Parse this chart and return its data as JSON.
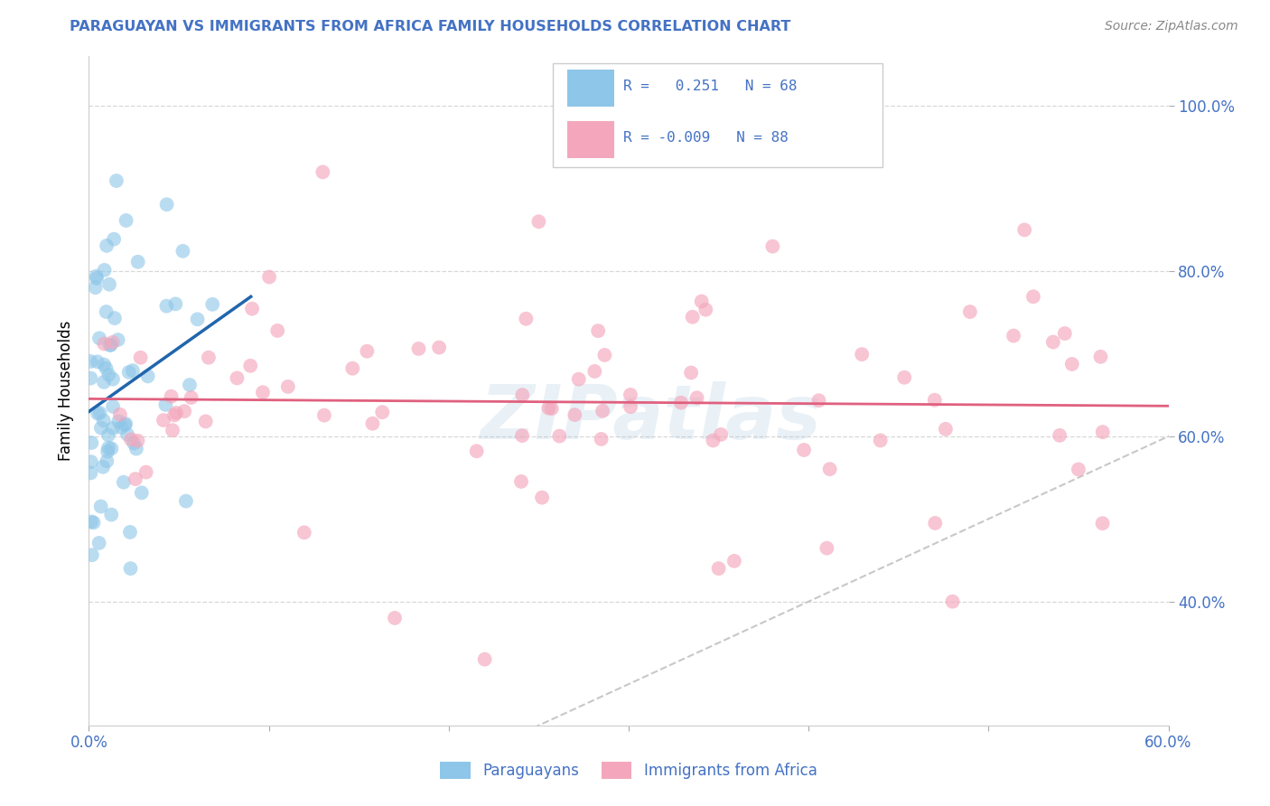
{
  "title": "PARAGUAYAN VS IMMIGRANTS FROM AFRICA FAMILY HOUSEHOLDS CORRELATION CHART",
  "source": "Source: ZipAtlas.com",
  "ylabel": "Family Households",
  "xlim": [
    0.0,
    0.6
  ],
  "ylim": [
    0.25,
    1.06
  ],
  "x_tick_positions": [
    0.0,
    0.1,
    0.2,
    0.3,
    0.4,
    0.5,
    0.6
  ],
  "x_tick_labels": [
    "0.0%",
    "",
    "",
    "",
    "",
    "",
    "60.0%"
  ],
  "y_tick_positions": [
    0.4,
    0.6,
    0.8,
    1.0
  ],
  "y_tick_labels": [
    "40.0%",
    "60.0%",
    "80.0%",
    "100.0%"
  ],
  "blue_color": "#8dc6e8",
  "pink_color": "#f4a7bc",
  "blue_line_color": "#2166ac",
  "pink_line_color": "#e0607e",
  "diagonal_color": "#c8c8c8",
  "watermark_text": "ZIPatlas",
  "watermark_color": "#8ab4d4",
  "watermark_alpha": 0.18,
  "title_color": "#4472c4",
  "tick_color": "#4472c4",
  "grid_color": "#d8d8d8",
  "legend_text_color": "#4472c4"
}
